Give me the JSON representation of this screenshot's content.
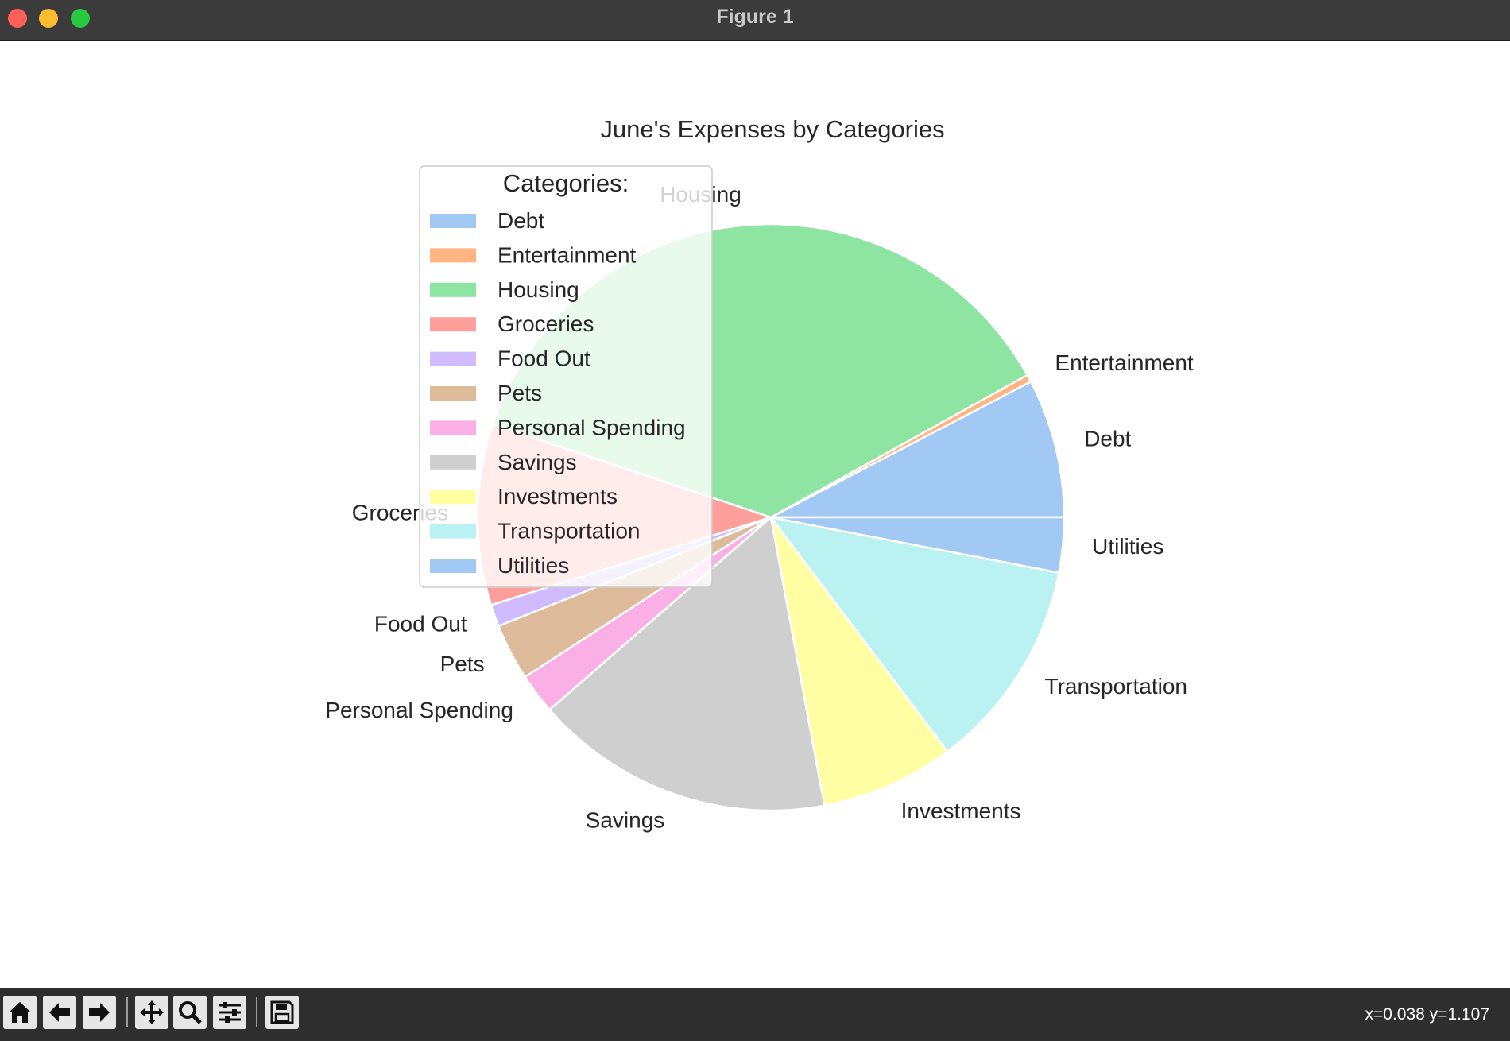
{
  "window": {
    "title": "Figure 1"
  },
  "toolbar": {
    "coords": "x=0.038 y=1.107",
    "buttons": [
      "home-icon",
      "back-arrow-icon",
      "forward-arrow-icon",
      "pan-icon",
      "zoom-icon",
      "configure-icon",
      "save-icon"
    ]
  },
  "chart_data": {
    "type": "pie",
    "title": "June's Expenses by Categories",
    "legend_title": "Categories:",
    "legend_position": "upper-left",
    "start_angle_deg": 0,
    "direction": "counterclockwise",
    "categories": [
      "Debt",
      "Entertainment",
      "Housing",
      "Groceries",
      "Food Out",
      "Pets",
      "Personal Spending",
      "Savings",
      "Investments",
      "Transportation",
      "Utilities"
    ],
    "values": [
      7.6,
      0.4,
      36.5,
      9.9,
      1.2,
      3.1,
      2.2,
      16.4,
      7.3,
      11.6,
      3.0
    ],
    "units": "percent of total (estimated)",
    "colors": [
      "#a1c9f4",
      "#ffb482",
      "#8de5a1",
      "#ff9f9b",
      "#d0bbff",
      "#debb9b",
      "#fab0e4",
      "#cfcfcf",
      "#fffea3",
      "#b9f2f0",
      "#a1c9f4"
    ]
  }
}
